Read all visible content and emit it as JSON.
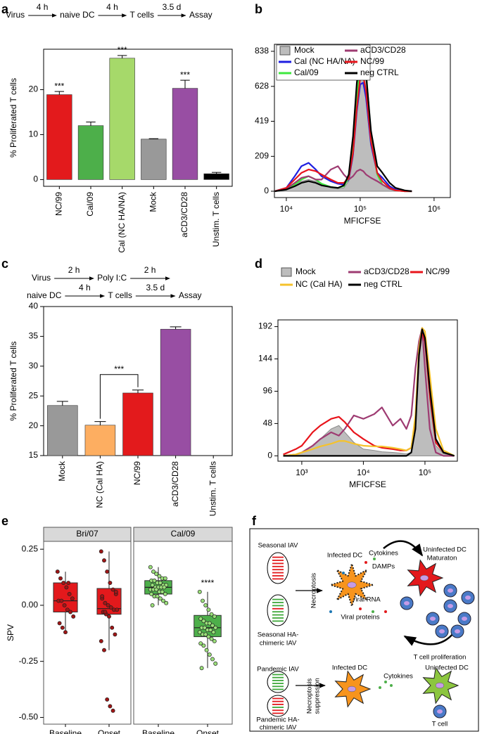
{
  "chart_data": [
    {
      "panel": "a",
      "type": "bar",
      "workflow": [
        [
          "Virus",
          "4 h",
          "naive DC",
          "4 h",
          "T cells",
          "3.5 d",
          "Assay"
        ]
      ],
      "ylabel": "% Proliferated T cells",
      "categories": [
        "NC/99",
        "Cal/09",
        "Cal (NC HA/NA)",
        "Mock",
        "aCD3/CD28",
        "Unstim. T cells"
      ],
      "values": [
        18.9,
        12,
        27,
        9,
        20.3,
        1.3
      ],
      "errors": [
        0.7,
        0.8,
        0.6,
        0.1,
        1.8,
        0.3
      ],
      "colors": [
        "#e31a1c",
        "#4daf4a",
        "#a6d96a",
        "#999999",
        "#984ea3",
        "#000000"
      ],
      "significance": [
        "***",
        null,
        "***",
        null,
        "***",
        null
      ],
      "ylim": [
        -1.5,
        29
      ],
      "yticks": [
        0,
        10,
        20
      ]
    },
    {
      "panel": "b",
      "type": "histogram-line",
      "xlabel": "MFICFSE",
      "xscale": "log",
      "x": [
        7000,
        10000,
        13000,
        16000,
        20000,
        25000,
        30000,
        40000,
        50000,
        60000,
        70000,
        80000,
        90000,
        100000,
        110000,
        120000,
        140000,
        170000,
        200000,
        250000,
        300000,
        400000,
        500000
      ],
      "series": [
        {
          "name": "Mock",
          "color": "#bdbdbd",
          "fill": true,
          "values": [
            0,
            10,
            40,
            60,
            70,
            60,
            40,
            20,
            15,
            20,
            60,
            200,
            500,
            780,
            790,
            700,
            350,
            100,
            40,
            15,
            5,
            0,
            0
          ]
        },
        {
          "name": "Cal (NC HA/NA)",
          "color": "#1f1fe0",
          "values": [
            0,
            20,
            90,
            150,
            170,
            130,
            90,
            60,
            45,
            40,
            70,
            220,
            480,
            640,
            650,
            560,
            280,
            110,
            80,
            30,
            10,
            2,
            0
          ]
        },
        {
          "name": "Cal/09",
          "color": "#3ee83e",
          "values": [
            0,
            15,
            40,
            70,
            90,
            70,
            45,
            25,
            20,
            30,
            80,
            260,
            560,
            820,
            830,
            720,
            330,
            100,
            40,
            15,
            5,
            0,
            0
          ]
        },
        {
          "name": "aCD3/CD28",
          "color": "#9e3b72",
          "values": [
            0,
            15,
            50,
            80,
            90,
            70,
            70,
            130,
            150,
            100,
            70,
            90,
            120,
            130,
            120,
            100,
            80,
            60,
            40,
            15,
            5,
            0,
            0
          ]
        },
        {
          "name": "NC/99",
          "color": "#e8141b",
          "values": [
            0,
            20,
            70,
            110,
            130,
            120,
            100,
            70,
            50,
            50,
            80,
            230,
            500,
            680,
            690,
            600,
            300,
            110,
            60,
            20,
            5,
            0,
            0
          ]
        },
        {
          "name": "neg CTRL",
          "color": "#000000",
          "values": [
            0,
            10,
            30,
            50,
            60,
            50,
            35,
            25,
            20,
            35,
            100,
            330,
            650,
            810,
            800,
            700,
            360,
            150,
            110,
            50,
            20,
            5,
            0
          ]
        }
      ],
      "xlim": [
        6900,
        1660000
      ],
      "xticks": [
        {
          "value": 10000,
          "label": "10⁴"
        },
        {
          "value": 100000,
          "label": "10⁵"
        },
        {
          "value": 1000000,
          "label": "10⁶"
        }
      ],
      "ylim": [
        -38,
        880
      ],
      "yticks": [
        0,
        209,
        419,
        628,
        838
      ]
    },
    {
      "panel": "c",
      "type": "bar",
      "workflow": [
        [
          "Virus",
          "2 h",
          "Poly I:C",
          "2 h"
        ],
        [
          "naive DC",
          "4 h",
          "T cells",
          "3.5 d",
          "Assay"
        ]
      ],
      "ylabel": "% Proliferated T cells",
      "categories": [
        "Mock",
        "NC (Cal HA)",
        "NC/99",
        "aCD3/CD28",
        "Unstim. T cells"
      ],
      "values": [
        23.4,
        20.1,
        25.5,
        36.2,
        null
      ],
      "errors": [
        0.7,
        0.6,
        0.5,
        0.4,
        null
      ],
      "colors": [
        "#999999",
        "#fdae61",
        "#e31a1c",
        "#984ea3",
        null
      ],
      "bracket": "***",
      "ylim": [
        15,
        40
      ],
      "yticks": [
        15,
        20,
        25,
        30,
        35,
        40
      ]
    },
    {
      "panel": "d",
      "type": "histogram-line",
      "xlabel": "MFICFSE",
      "xscale": "log",
      "x": [
        500,
        800,
        1000,
        1500,
        2000,
        3000,
        4000,
        5000,
        7000,
        10000,
        15000,
        20000,
        30000,
        40000,
        50000,
        60000,
        70000,
        80000,
        90000,
        100000,
        120000,
        150000,
        200000,
        300000
      ],
      "series": [
        {
          "name": "Mock",
          "color": "#bdbdbd",
          "fill": true,
          "values": [
            0,
            2,
            5,
            15,
            25,
            40,
            45,
            35,
            20,
            10,
            8,
            6,
            5,
            4,
            3,
            5,
            40,
            140,
            185,
            170,
            80,
            15,
            3,
            0
          ]
        },
        {
          "name": "aCD3/CD28",
          "color": "#9e3b72",
          "values": [
            0,
            2,
            5,
            15,
            25,
            35,
            30,
            40,
            60,
            55,
            62,
            72,
            45,
            55,
            40,
            60,
            130,
            170,
            190,
            130,
            40,
            5,
            0,
            0
          ]
        },
        {
          "name": "NC/99",
          "color": "#e8141b",
          "values": [
            2,
            10,
            15,
            35,
            45,
            55,
            58,
            50,
            35,
            25,
            15,
            12,
            10,
            8,
            8,
            12,
            50,
            150,
            185,
            170,
            90,
            20,
            5,
            0
          ]
        },
        {
          "name": "NC (Cal HA)",
          "color": "#f5c22b",
          "values": [
            0,
            2,
            5,
            10,
            14,
            18,
            22,
            22,
            18,
            15,
            14,
            14,
            12,
            10,
            8,
            12,
            60,
            160,
            190,
            185,
            120,
            40,
            8,
            0
          ]
        },
        {
          "name": "neg CTRL",
          "color": "#000000",
          "values": [
            0,
            0,
            0,
            0,
            0,
            0,
            0,
            0,
            0,
            0,
            0,
            0,
            0,
            0,
            0,
            5,
            40,
            150,
            188,
            175,
            100,
            25,
            5,
            0
          ]
        }
      ],
      "xlim": [
        410,
        336000
      ],
      "xticks": [
        {
          "value": 1000,
          "label": "10³"
        },
        {
          "value": 10000,
          "label": "10⁴"
        },
        {
          "value": 100000,
          "label": "10⁵"
        }
      ],
      "ylim": [
        -8,
        202
      ],
      "yticks": [
        0,
        48,
        96,
        144,
        192
      ]
    },
    {
      "panel": "e",
      "type": "box",
      "ylabel": "SPV",
      "categories": [
        "Baseline",
        "Onset"
      ],
      "ylim": [
        -0.53,
        0.285
      ],
      "yticks": [
        {
          "value": 0.25,
          "label": "0.25"
        },
        {
          "value": 0,
          "label": "0.00"
        },
        {
          "value": -0.25,
          "label": "-0.25"
        },
        {
          "value": -0.5,
          "label": "-0.50"
        }
      ],
      "facets": [
        {
          "name": "Bri/07",
          "color": "#e3191c",
          "point_color": "#a11515",
          "significance": [
            null,
            null
          ],
          "boxes": [
            {
              "q1": -0.03,
              "median": 0.02,
              "q3": 0.1,
              "whislo": -0.12,
              "whishi": 0.15,
              "points": [
                0.15,
                0.12,
                0.1,
                0.08,
                0.05,
                0.03,
                0.02,
                0.02,
                0.0,
                -0.02,
                -0.03,
                -0.05,
                -0.08,
                -0.1,
                -0.12,
                0.1
              ]
            },
            {
              "q1": -0.04,
              "median": -0.015,
              "q3": 0.075,
              "whislo": -0.2,
              "whishi": 0.24,
              "points": [
                0.24,
                0.2,
                0.15,
                0.1,
                0.07,
                0.05,
                0.03,
                0.01,
                0.0,
                -0.01,
                -0.02,
                -0.02,
                -0.03,
                -0.04,
                -0.05,
                -0.1,
                -0.13,
                -0.16,
                -0.2,
                -0.42,
                -0.45,
                -0.47,
                0.06,
                0.04,
                -0.03
              ]
            }
          ]
        },
        {
          "name": "Cal/09",
          "color": "#4daf4a",
          "point_color": "#9be07a",
          "significance": [
            null,
            "****"
          ],
          "boxes": [
            {
              "q1": 0.05,
              "median": 0.08,
              "q3": 0.11,
              "whislo": 0.0,
              "whishi": 0.17,
              "points": [
                0.17,
                0.15,
                0.14,
                0.13,
                0.12,
                0.12,
                0.11,
                0.11,
                0.1,
                0.1,
                0.09,
                0.09,
                0.09,
                0.08,
                0.08,
                0.08,
                0.08,
                0.07,
                0.07,
                0.07,
                0.06,
                0.06,
                0.05,
                0.05,
                0.04,
                0.04,
                0.03,
                0.02,
                0.01,
                0.0
              ]
            },
            {
              "q1": -0.14,
              "median": -0.1,
              "q3": -0.045,
              "whislo": -0.28,
              "whishi": 0.06,
              "points": [
                0.06,
                0.02,
                0.0,
                -0.02,
                -0.04,
                -0.05,
                -0.06,
                -0.07,
                -0.08,
                -0.08,
                -0.09,
                -0.1,
                -0.1,
                -0.1,
                -0.11,
                -0.11,
                -0.12,
                -0.12,
                -0.13,
                -0.13,
                -0.14,
                -0.15,
                -0.16,
                -0.17,
                -0.18,
                -0.2,
                -0.22,
                -0.24,
                -0.26,
                -0.28
              ]
            }
          ]
        }
      ]
    }
  ],
  "diagram": {
    "panel": "f",
    "seasonal_iav": "Seasonal IAV",
    "seasonal_chimeric": [
      "Seasonal HA-",
      "chimeric IAV"
    ],
    "necroptosis": "Necroptosis",
    "infected_dc": "Infected DC",
    "cytokines": "Cytokines",
    "damps": "DAMPs",
    "viral_rna": "Viral RNA",
    "viral_proteins": "Viral proteins",
    "uninfected_dc": "Uninfected DC",
    "maturation": "Maturaton",
    "t_cell_proliferation": "T cell proliferation",
    "pandemic_iav": "Pandemic IAV",
    "pandemic_chimeric": [
      "Pandemic HA-",
      "chimeric IAV"
    ],
    "necroptosis_suppression": [
      "Necroptosis",
      "suppression"
    ],
    "infected_dc_2": "Infected DC",
    "cytokines_2": "Cytokines",
    "uninfected_dc_2": "Uninfected DC",
    "t_cell": "T cell"
  }
}
